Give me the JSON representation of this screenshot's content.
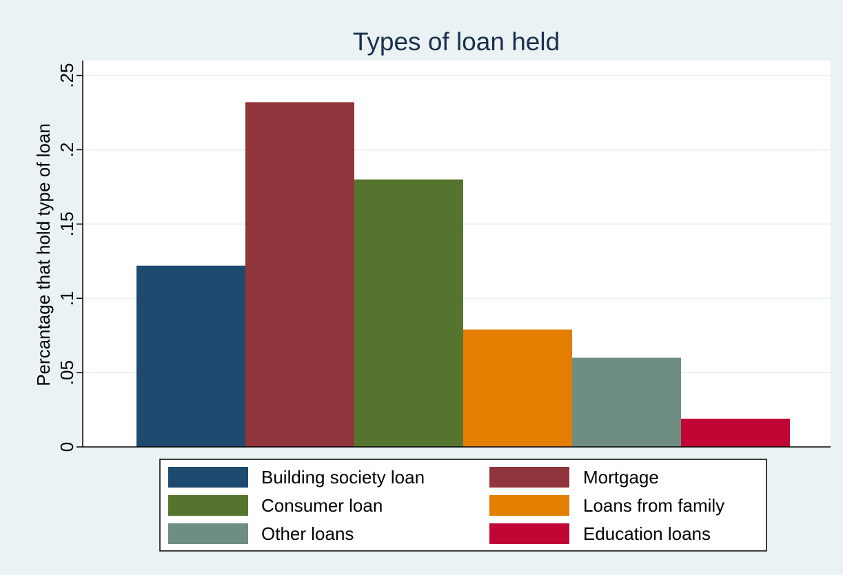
{
  "chart_data": {
    "type": "bar",
    "title": "Types of loan held",
    "xlabel": "",
    "ylabel": "Percantage that hold type of loan",
    "ylim": [
      0,
      0.26
    ],
    "yticks": [
      {
        "value": 0,
        "label": "0"
      },
      {
        "value": 0.05,
        "label": ".05"
      },
      {
        "value": 0.1,
        "label": ".1"
      },
      {
        "value": 0.15,
        "label": ".15"
      },
      {
        "value": 0.2,
        "label": ".2"
      },
      {
        "value": 0.25,
        "label": ".25"
      }
    ],
    "grid": true,
    "legend_position": "bottom",
    "series": [
      {
        "name": "Building society loan",
        "value": 0.122,
        "color": "#1f4a70"
      },
      {
        "name": "Mortgage",
        "value": 0.232,
        "color": "#90353b"
      },
      {
        "name": "Consumer loan",
        "value": 0.18,
        "color": "#55752f"
      },
      {
        "name": "Loans from family",
        "value": 0.079,
        "color": "#e37e00"
      },
      {
        "name": "Other loans",
        "value": 0.06,
        "color": "#6e8e84"
      },
      {
        "name": "Education loans",
        "value": 0.019,
        "color": "#c10534"
      }
    ],
    "colors": {
      "background": "#eaf2f3",
      "plot_background": "#ffffff",
      "gridline": "#eaf2f3",
      "title": "#1a2f4d"
    }
  }
}
